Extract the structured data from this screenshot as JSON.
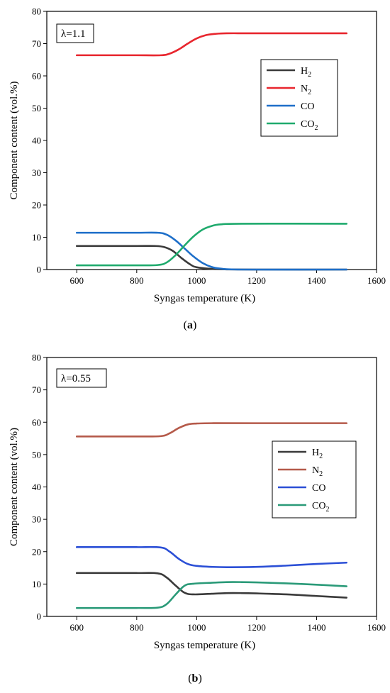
{
  "chart_data": [
    {
      "type": "line",
      "panel": "a",
      "caption_letter": "a",
      "annotation": "λ=1.1",
      "xlabel": "Syngas temperature (K)",
      "ylabel": "Component content (vol.%)",
      "xlim": [
        500,
        1600
      ],
      "ylim": [
        0,
        80
      ],
      "xticks": [
        600,
        800,
        1000,
        1200,
        1400,
        1600
      ],
      "yticks": [
        0,
        10,
        20,
        30,
        40,
        50,
        60,
        70,
        80
      ],
      "legend_position": "upper-right",
      "series": [
        {
          "name": "H",
          "sub": "2",
          "color": "#3a3a3a",
          "x": [
            600,
            700,
            800,
            860,
            890,
            920,
            950,
            980,
            1000,
            1050,
            1100,
            1200,
            1500
          ],
          "y": [
            7.3,
            7.3,
            7.3,
            7.3,
            7.0,
            5.8,
            3.5,
            1.5,
            0.7,
            0.2,
            0.05,
            0,
            0
          ]
        },
        {
          "name": "N",
          "sub": "2",
          "color": "#e8262e",
          "x": [
            600,
            700,
            800,
            880,
            910,
            940,
            970,
            1000,
            1030,
            1060,
            1100,
            1200,
            1500
          ],
          "y": [
            66.4,
            66.4,
            66.4,
            66.4,
            66.9,
            68.2,
            70.0,
            71.6,
            72.6,
            73.0,
            73.2,
            73.2,
            73.2
          ]
        },
        {
          "name": "CO",
          "sub": "",
          "color": "#1e6fc9",
          "x": [
            600,
            700,
            800,
            870,
            900,
            930,
            960,
            990,
            1020,
            1050,
            1080,
            1150,
            1500
          ],
          "y": [
            11.4,
            11.4,
            11.4,
            11.4,
            10.8,
            9.0,
            6.5,
            4.0,
            2.0,
            0.8,
            0.3,
            0,
            0
          ]
        },
        {
          "name": "CO",
          "sub": "2",
          "color": "#1faa6d",
          "x": [
            600,
            700,
            800,
            870,
            900,
            930,
            960,
            990,
            1020,
            1050,
            1080,
            1150,
            1500
          ],
          "y": [
            1.3,
            1.3,
            1.3,
            1.4,
            2.2,
            4.5,
            7.5,
            10.3,
            12.4,
            13.5,
            14.0,
            14.2,
            14.2
          ]
        }
      ]
    },
    {
      "type": "line",
      "panel": "b",
      "caption_letter": "b",
      "annotation": "λ=0.55",
      "xlabel": "Syngas temperature (K)",
      "ylabel": "Component content (vol.%)",
      "xlim": [
        500,
        1600
      ],
      "ylim": [
        0,
        80
      ],
      "xticks": [
        600,
        800,
        1000,
        1200,
        1400,
        1600
      ],
      "yticks": [
        0,
        10,
        20,
        30,
        40,
        50,
        60,
        70,
        80
      ],
      "legend_position": "right",
      "series": [
        {
          "name": "H",
          "sub": "2",
          "color": "#3a3a3a",
          "x": [
            600,
            700,
            800,
            870,
            900,
            930,
            960,
            990,
            1050,
            1100,
            1150,
            1200,
            1300,
            1400,
            1500
          ],
          "y": [
            13.4,
            13.4,
            13.4,
            13.3,
            12.0,
            9.5,
            7.3,
            6.8,
            7.0,
            7.2,
            7.2,
            7.1,
            6.8,
            6.3,
            5.8
          ]
        },
        {
          "name": "N",
          "sub": "2",
          "color": "#b55a4a",
          "x": [
            600,
            700,
            800,
            880,
            910,
            940,
            970,
            1000,
            1050,
            1200,
            1500
          ],
          "y": [
            55.6,
            55.6,
            55.6,
            55.7,
            56.6,
            58.2,
            59.3,
            59.6,
            59.7,
            59.7,
            59.7
          ]
        },
        {
          "name": "CO",
          "sub": "",
          "color": "#2b4fd6",
          "x": [
            600,
            700,
            800,
            880,
            910,
            940,
            970,
            1000,
            1050,
            1100,
            1200,
            1300,
            1400,
            1500
          ],
          "y": [
            21.4,
            21.4,
            21.4,
            21.3,
            20.0,
            17.8,
            16.2,
            15.6,
            15.3,
            15.2,
            15.3,
            15.7,
            16.2,
            16.6
          ]
        },
        {
          "name": "CO",
          "sub": "2",
          "color": "#2a9a78",
          "x": [
            600,
            700,
            800,
            870,
            900,
            930,
            960,
            990,
            1050,
            1100,
            1150,
            1200,
            1300,
            1400,
            1500
          ],
          "y": [
            2.6,
            2.6,
            2.6,
            2.7,
            3.8,
            6.8,
            9.5,
            10.1,
            10.4,
            10.6,
            10.6,
            10.5,
            10.2,
            9.8,
            9.3
          ]
        }
      ]
    }
  ]
}
